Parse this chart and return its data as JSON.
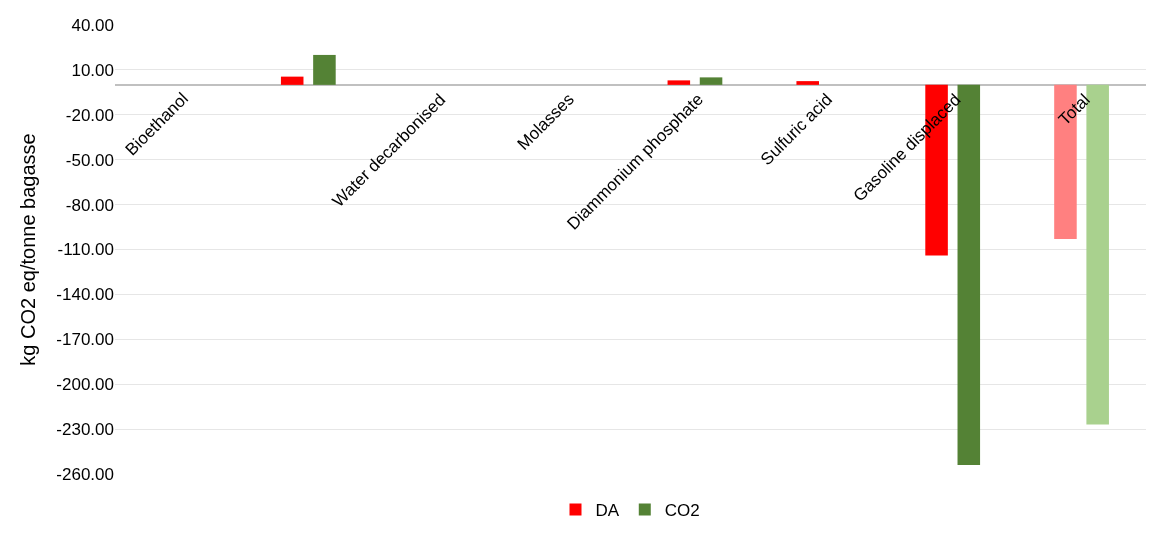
{
  "chart_data": {
    "type": "bar",
    "ylabel": "kg CO2 eq/tonne bagasse",
    "categories": [
      "Bioethanol",
      null,
      "Water decarbonised",
      "Molasses",
      "Diammonium phosphate",
      "Sulfuric acid",
      "Gasoline displaced",
      "Total"
    ],
    "series": [
      {
        "name": "DA",
        "colors": [
          "#ff0000",
          "#ff0000",
          "#ff0000",
          "#ff0000",
          "#ff0000",
          "#ff0000",
          "#ff0000",
          "#ff8080"
        ],
        "values": [
          0,
          5.5,
          0,
          0,
          3,
          2.5,
          -114,
          -103
        ]
      },
      {
        "name": "CO2",
        "colors": [
          "#548235",
          "#548235",
          "#548235",
          "#548235",
          "#548235",
          "#548235",
          "#548235",
          "#a9d18e"
        ],
        "values": [
          0,
          20,
          0,
          0,
          5,
          0,
          -254,
          -227
        ]
      }
    ],
    "ylim": [
      -260,
      40
    ],
    "yticks": [
      {
        "value": 40,
        "label": "40.00"
      },
      {
        "value": 10,
        "label": "10.00"
      },
      {
        "value": -20,
        "label": "-20.00"
      },
      {
        "value": -50,
        "label": "-50.00"
      },
      {
        "value": -80,
        "label": "-80.00"
      },
      {
        "value": -110,
        "label": "-110.00"
      },
      {
        "value": -140,
        "label": "-140.00"
      },
      {
        "value": -170,
        "label": "-170.00"
      },
      {
        "value": -200,
        "label": "-200.00"
      },
      {
        "value": -230,
        "label": "-230.00"
      },
      {
        "value": -260,
        "label": "-260.00"
      }
    ],
    "grid": "y",
    "legend": "bottom"
  }
}
